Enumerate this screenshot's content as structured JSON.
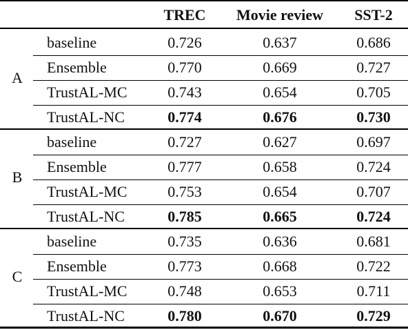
{
  "header": {
    "col1": "TREC",
    "col2": "Movie review",
    "col3": "SST-2"
  },
  "groups": [
    {
      "label": "A",
      "rows": [
        {
          "method": "baseline",
          "v1": "0.726",
          "v2": "0.637",
          "v3": "0.686"
        },
        {
          "method": "Ensemble",
          "v1": "0.770",
          "v2": "0.669",
          "v3": "0.727"
        },
        {
          "method": "TrustAL-MC",
          "v1": "0.743",
          "v2": "0.654",
          "v3": "0.705"
        },
        {
          "method": "TrustAL-NC",
          "v1": "0.774",
          "v2": "0.676",
          "v3": "0.730"
        }
      ]
    },
    {
      "label": "B",
      "rows": [
        {
          "method": "baseline",
          "v1": "0.727",
          "v2": "0.627",
          "v3": "0.697"
        },
        {
          "method": "Ensemble",
          "v1": "0.777",
          "v2": "0.658",
          "v3": "0.724"
        },
        {
          "method": "TrustAL-MC",
          "v1": "0.753",
          "v2": "0.654",
          "v3": "0.707"
        },
        {
          "method": "TrustAL-NC",
          "v1": "0.785",
          "v2": "0.665",
          "v3": "0.724"
        }
      ]
    },
    {
      "label": "C",
      "rows": [
        {
          "method": "baseline",
          "v1": "0.735",
          "v2": "0.636",
          "v3": "0.681"
        },
        {
          "method": "Ensemble",
          "v1": "0.773",
          "v2": "0.668",
          "v3": "0.722"
        },
        {
          "method": "TrustAL-MC",
          "v1": "0.748",
          "v2": "0.653",
          "v3": "0.711"
        },
        {
          "method": "TrustAL-NC",
          "v1": "0.780",
          "v2": "0.670",
          "v3": "0.729"
        }
      ]
    }
  ]
}
